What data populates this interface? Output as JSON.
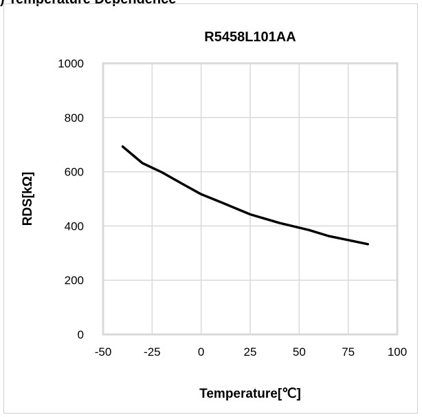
{
  "top_caption": ") Temperature Dependence",
  "chart_data": {
    "type": "line",
    "title": "R5458L101AA",
    "xlabel": "Temperature[℃]",
    "ylabel": "RDS[kΩ]",
    "xlim": [
      -50,
      100
    ],
    "ylim": [
      0,
      1000
    ],
    "xticks": [
      -50,
      -25,
      0,
      25,
      50,
      75,
      100
    ],
    "yticks": [
      0,
      200,
      400,
      600,
      800,
      1000
    ],
    "grid": true,
    "line_color": "#000000",
    "grid_color": "#d9d9d9",
    "series": [
      {
        "x": [
          -40,
          -30,
          -20,
          -10,
          0,
          10,
          25,
          40,
          55,
          65,
          85
        ],
        "y": [
          693,
          632,
          598,
          557,
          517,
          488,
          443,
          411,
          385,
          363,
          333
        ]
      }
    ]
  }
}
